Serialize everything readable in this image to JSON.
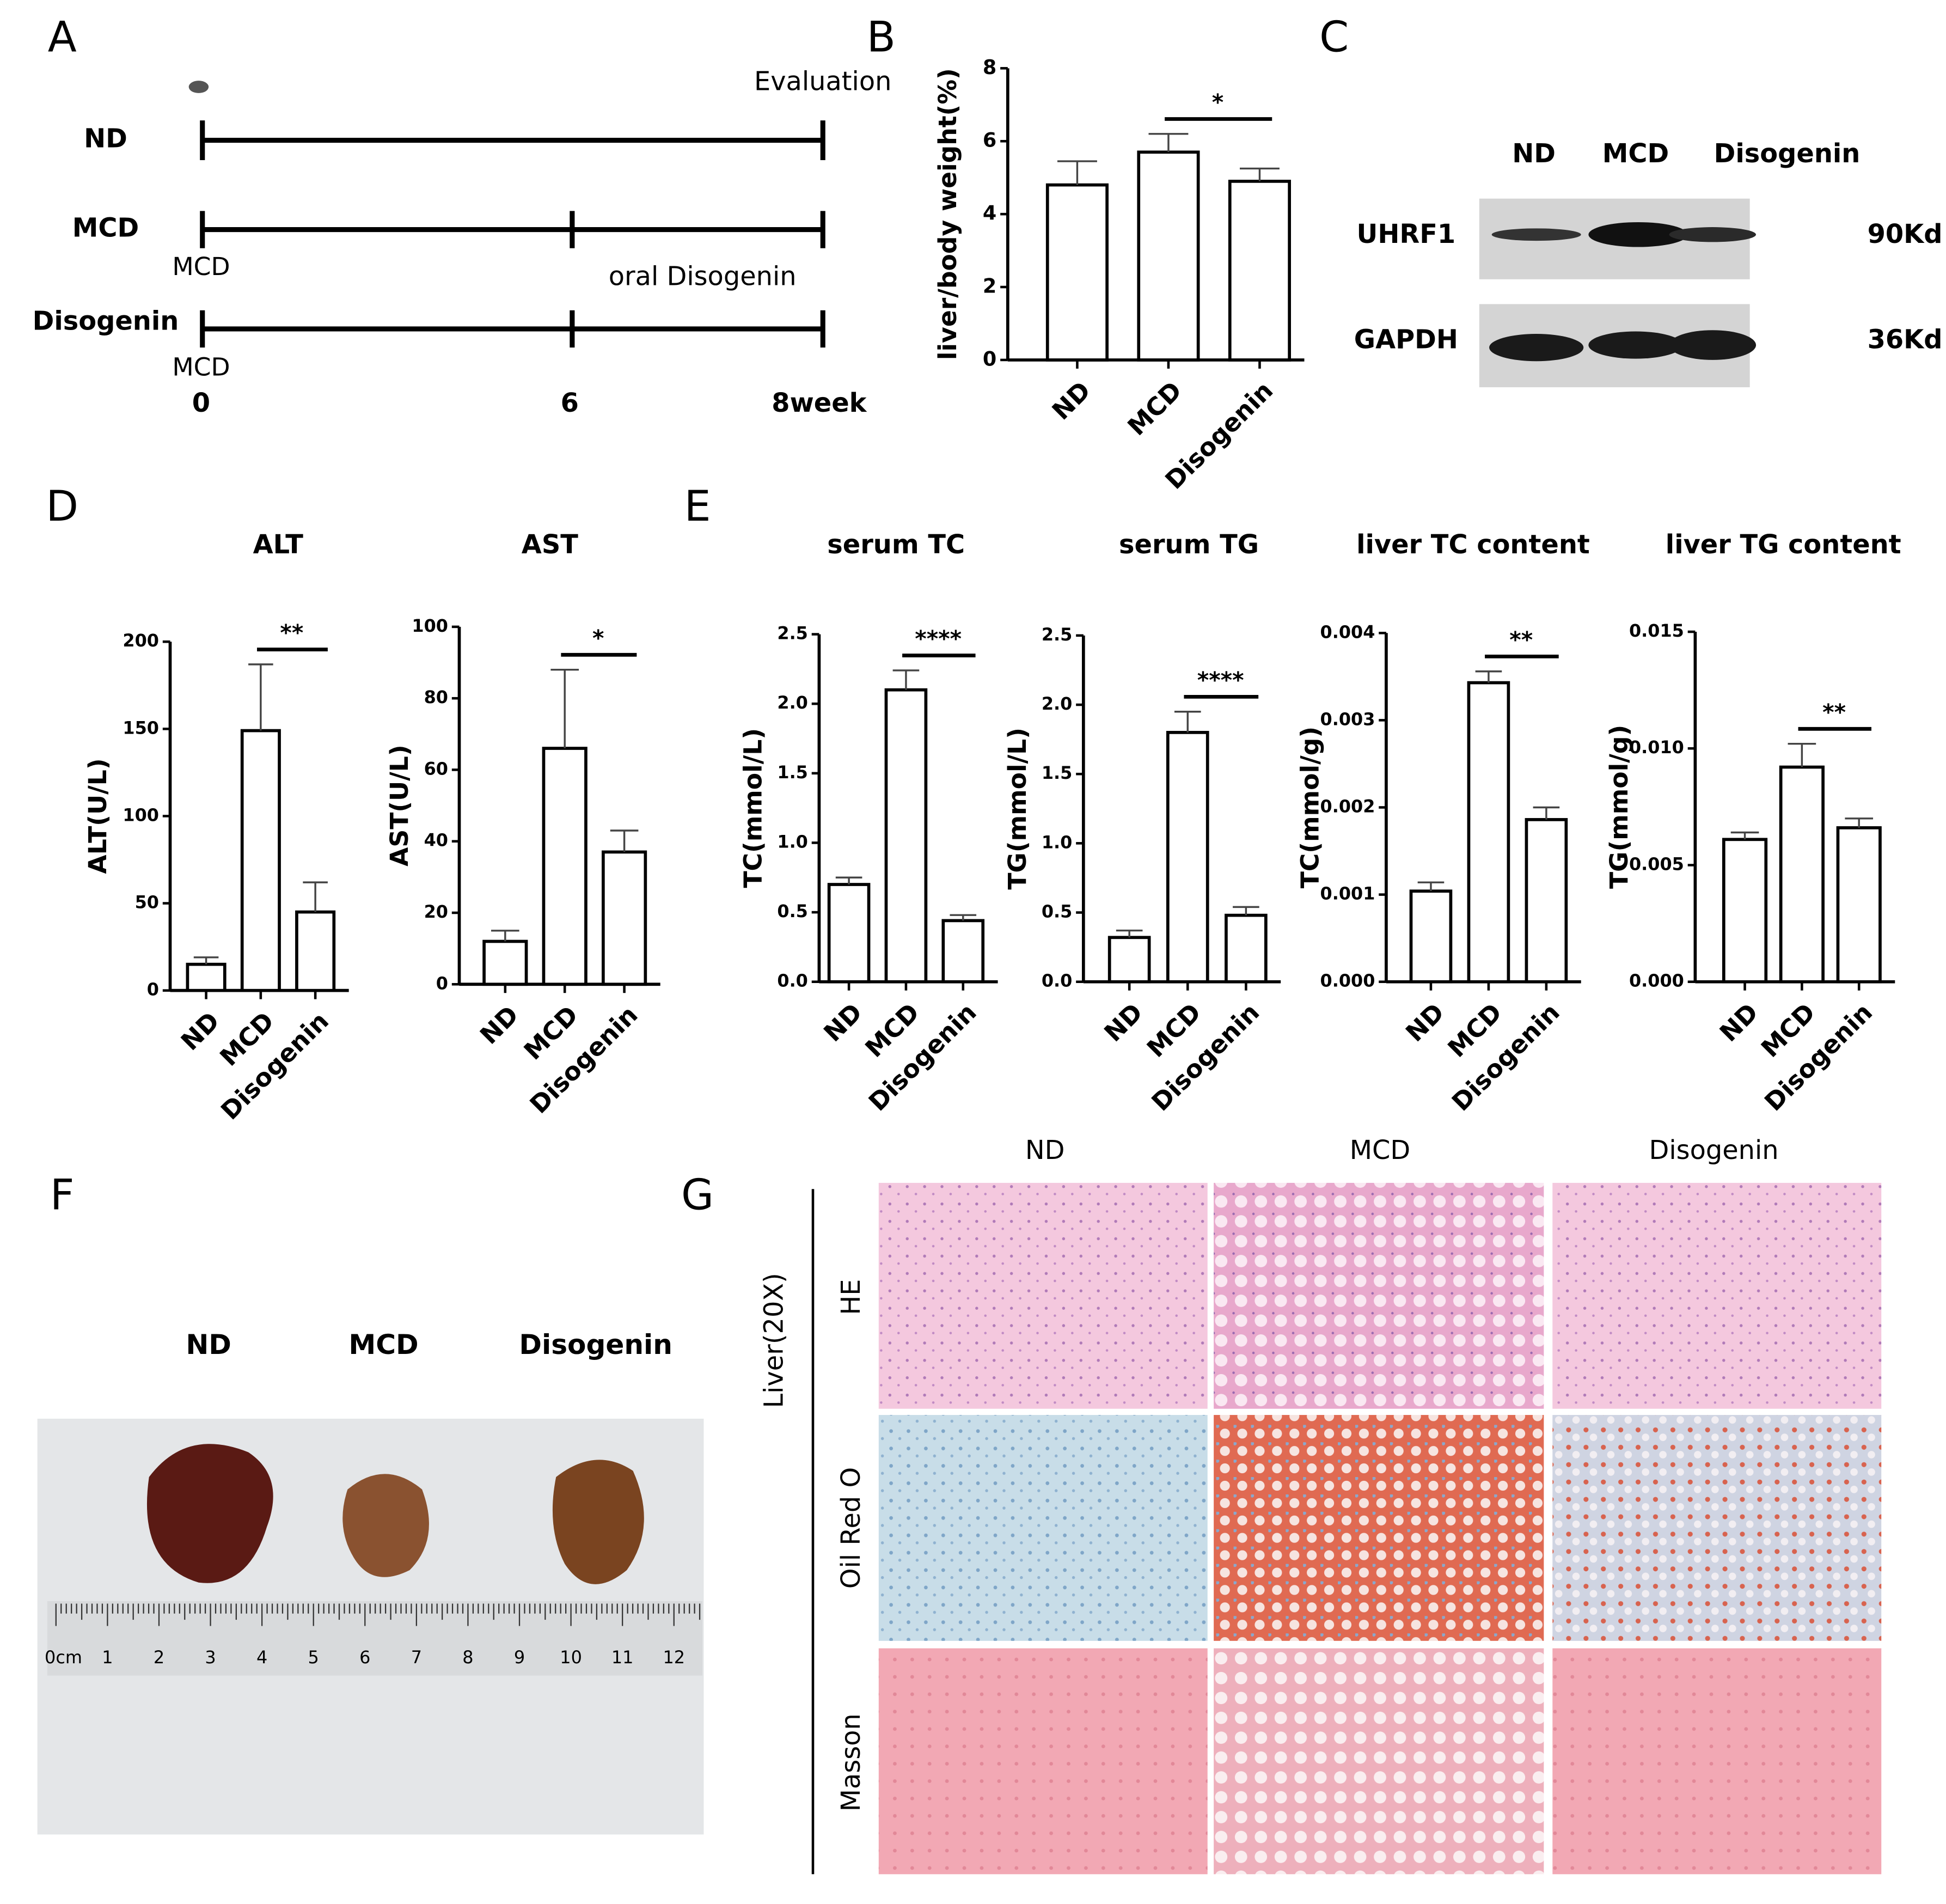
{
  "panel_labels": [
    "A",
    "B",
    "C",
    "D",
    "E",
    "F",
    "G"
  ],
  "timeline": {
    "groups": [
      "ND",
      "MCD",
      "Disogenin"
    ],
    "end_label": "Evaluation",
    "start_labels": [
      "MCD",
      "MCD"
    ],
    "treatment_label": "oral Disogenin",
    "axis_labels": [
      "0",
      "6",
      "8week"
    ]
  },
  "western_blot": {
    "lanes": [
      "ND",
      "MCD",
      "Disogenin"
    ],
    "proteins": [
      {
        "name": "UHRF1",
        "size": "90Kd"
      },
      {
        "name": "GAPDH",
        "size": "36Kd"
      }
    ]
  },
  "liver_photo": {
    "groups": [
      "ND",
      "MCD",
      "Disogenin"
    ],
    "ruler_labels": [
      "0cm",
      "1",
      "2",
      "3",
      "4",
      "5",
      "6",
      "7",
      "8",
      "9",
      "10",
      "11",
      "12"
    ]
  },
  "histology": {
    "columns": [
      "ND",
      "MCD",
      "Disogenin"
    ],
    "rows": [
      "HE",
      "Oil Red O",
      "Masson"
    ],
    "side_label": "Liver(20X)"
  },
  "chart_data": [
    {
      "type": "bar",
      "y_label": "liver/body weight(%)",
      "categories": [
        "ND",
        "MCD",
        "Disogenin"
      ],
      "values": [
        4.8,
        5.7,
        4.9
      ],
      "errors": [
        0.65,
        0.5,
        0.35
      ],
      "ylim": [
        0,
        8
      ],
      "yticks": [
        0,
        2,
        4,
        6,
        8
      ],
      "annotation": "*",
      "color": "#ffffff",
      "edge_color": "#000000"
    },
    {
      "type": "bar",
      "title": "ALT",
      "y_label": "ALT(U/L)",
      "categories": [
        "ND",
        "MCD",
        "Disogenin"
      ],
      "values": [
        15,
        149,
        45
      ],
      "errors": [
        4,
        38,
        17
      ],
      "ylim": [
        0,
        200
      ],
      "yticks": [
        0,
        50,
        100,
        150,
        200
      ],
      "annotation": "**",
      "color": "#ffffff",
      "edge_color": "#000000"
    },
    {
      "type": "bar",
      "title": "AST",
      "y_label": "AST(U/L)",
      "categories": [
        "ND",
        "MCD",
        "Disogenin"
      ],
      "values": [
        12,
        66,
        37
      ],
      "errors": [
        3,
        22,
        6
      ],
      "ylim": [
        0,
        100
      ],
      "yticks": [
        0,
        20,
        40,
        60,
        80,
        100
      ],
      "annotation": "*",
      "color": "#ffffff",
      "edge_color": "#000000"
    },
    {
      "type": "bar",
      "title": "serum TC",
      "y_label": "TC(mmol/L)",
      "categories": [
        "ND",
        "MCD",
        "Disogenin"
      ],
      "values": [
        0.7,
        2.1,
        0.44
      ],
      "errors": [
        0.05,
        0.14,
        0.04
      ],
      "ylim": [
        0,
        2.5
      ],
      "yticks": [
        {
          "value": 0,
          "label": "0.0"
        },
        0.5,
        {
          "value": 1,
          "label": "1.0"
        },
        1.5,
        {
          "value": 2,
          "label": "2.0"
        },
        2.5
      ],
      "annotation": "****",
      "color": "#ffffff",
      "edge_color": "#000000"
    },
    {
      "type": "bar",
      "title": "serum TG",
      "y_label": "TG(mmol/L)",
      "categories": [
        "ND",
        "MCD",
        "Disogenin"
      ],
      "values": [
        0.32,
        1.8,
        0.48
      ],
      "errors": [
        0.05,
        0.15,
        0.06
      ],
      "ylim": [
        0,
        2.5
      ],
      "yticks": [
        {
          "value": 0,
          "label": "0.0"
        },
        0.5,
        {
          "value": 1,
          "label": "1.0"
        },
        1.5,
        {
          "value": 2,
          "label": "2.0"
        },
        2.5
      ],
      "annotation": "****",
      "color": "#ffffff",
      "edge_color": "#000000"
    },
    {
      "type": "bar",
      "title": "liver TC content",
      "y_label": "TC(mmol/g)",
      "categories": [
        "ND",
        "MCD",
        "Disogenin"
      ],
      "values": [
        0.00104,
        0.00343,
        0.00186
      ],
      "errors": [
        0.0001,
        0.00013,
        0.00014
      ],
      "ylim": [
        0,
        0.004
      ],
      "yticks": [
        {
          "value": 0,
          "label": "0.000"
        },
        0.001,
        0.002,
        0.003,
        0.004
      ],
      "annotation": "**",
      "color": "#ffffff",
      "edge_color": "#000000"
    },
    {
      "type": "bar",
      "title": "liver TG content",
      "y_label": "TG(mmol/g)",
      "categories": [
        "ND",
        "MCD",
        "Disogenin"
      ],
      "values": [
        0.0061,
        0.0092,
        0.0066
      ],
      "errors": [
        0.0003,
        0.001,
        0.0004
      ],
      "ylim": [
        0,
        0.015
      ],
      "yticks": [
        {
          "value": 0,
          "label": "0.000"
        },
        0.005,
        {
          "value": 0.01,
          "label": "0.010"
        },
        0.015
      ],
      "annotation": "**",
      "color": "#ffffff",
      "edge_color": "#000000"
    }
  ]
}
